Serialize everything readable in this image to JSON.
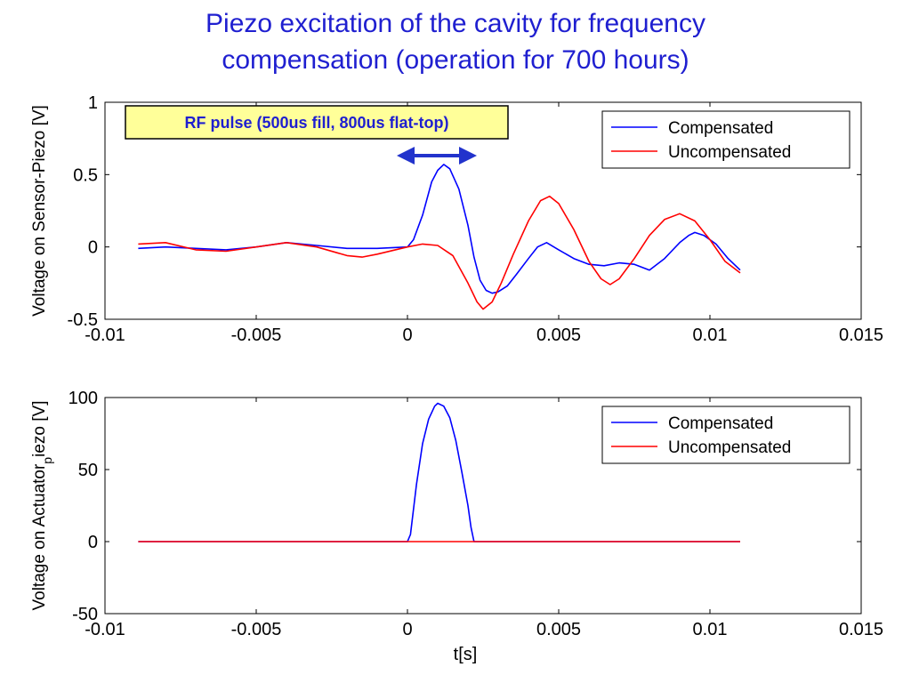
{
  "slide": {
    "title_line1": "Piezo excitation of the cavity for frequency",
    "title_line2": "compensation (operation for 700 hours)"
  },
  "annotation": {
    "text": "RF pulse (500us fill, 800us flat-top)",
    "fill": "#ffff99",
    "arrow_color": "#2233cc"
  },
  "chart_data": [
    {
      "type": "line",
      "title": "",
      "xlabel": "",
      "ylabel": "Voltage on Sensor-Piezo [V]",
      "xlim": [
        -0.01,
        0.015
      ],
      "ylim": [
        -0.5,
        1
      ],
      "xticks": [
        -0.01,
        -0.005,
        0,
        0.005,
        0.01,
        0.015
      ],
      "xtick_labels": [
        "-0.01",
        "-0.005",
        "0",
        "0.005",
        "0.01",
        "0.015"
      ],
      "yticks": [
        -0.5,
        0,
        0.5,
        1
      ],
      "ytick_labels": [
        "-0.5",
        "0",
        "0.5",
        "1"
      ],
      "legend_position": "top-right",
      "series": [
        {
          "name": "Compensated",
          "color": "#0000ff",
          "points": [
            [
              -0.0089,
              -0.01
            ],
            [
              -0.008,
              0.0
            ],
            [
              -0.007,
              -0.01
            ],
            [
              -0.006,
              -0.02
            ],
            [
              -0.005,
              0.0
            ],
            [
              -0.004,
              0.03
            ],
            [
              -0.003,
              0.01
            ],
            [
              -0.002,
              -0.01
            ],
            [
              -0.001,
              -0.01
            ],
            [
              0.0,
              0.0
            ],
            [
              0.0002,
              0.05
            ],
            [
              0.0005,
              0.22
            ],
            [
              0.0008,
              0.45
            ],
            [
              0.001,
              0.53
            ],
            [
              0.0012,
              0.57
            ],
            [
              0.0014,
              0.54
            ],
            [
              0.0017,
              0.4
            ],
            [
              0.002,
              0.15
            ],
            [
              0.0022,
              -0.07
            ],
            [
              0.0024,
              -0.23
            ],
            [
              0.0026,
              -0.3
            ],
            [
              0.0028,
              -0.32
            ],
            [
              0.003,
              -0.31
            ],
            [
              0.0033,
              -0.27
            ],
            [
              0.0036,
              -0.19
            ],
            [
              0.004,
              -0.08
            ],
            [
              0.0043,
              0.0
            ],
            [
              0.0046,
              0.03
            ],
            [
              0.005,
              -0.02
            ],
            [
              0.0055,
              -0.08
            ],
            [
              0.006,
              -0.12
            ],
            [
              0.0065,
              -0.13
            ],
            [
              0.007,
              -0.11
            ],
            [
              0.0075,
              -0.12
            ],
            [
              0.008,
              -0.16
            ],
            [
              0.0085,
              -0.08
            ],
            [
              0.009,
              0.03
            ],
            [
              0.0093,
              0.08
            ],
            [
              0.0095,
              0.1
            ],
            [
              0.0098,
              0.08
            ],
            [
              0.0102,
              0.02
            ],
            [
              0.0106,
              -0.08
            ],
            [
              0.011,
              -0.16
            ]
          ]
        },
        {
          "name": "Uncompensated",
          "color": "#ff0000",
          "points": [
            [
              -0.0089,
              0.02
            ],
            [
              -0.008,
              0.03
            ],
            [
              -0.007,
              -0.02
            ],
            [
              -0.006,
              -0.03
            ],
            [
              -0.005,
              0.0
            ],
            [
              -0.004,
              0.03
            ],
            [
              -0.003,
              0.0
            ],
            [
              -0.002,
              -0.06
            ],
            [
              -0.0015,
              -0.07
            ],
            [
              -0.001,
              -0.05
            ],
            [
              0.0,
              0.0
            ],
            [
              0.0005,
              0.02
            ],
            [
              0.001,
              0.01
            ],
            [
              0.0015,
              -0.06
            ],
            [
              0.002,
              -0.25
            ],
            [
              0.0023,
              -0.38
            ],
            [
              0.0025,
              -0.43
            ],
            [
              0.0028,
              -0.38
            ],
            [
              0.0031,
              -0.25
            ],
            [
              0.0035,
              -0.05
            ],
            [
              0.004,
              0.18
            ],
            [
              0.0044,
              0.32
            ],
            [
              0.0047,
              0.35
            ],
            [
              0.005,
              0.3
            ],
            [
              0.0055,
              0.12
            ],
            [
              0.006,
              -0.1
            ],
            [
              0.0064,
              -0.22
            ],
            [
              0.0067,
              -0.26
            ],
            [
              0.007,
              -0.22
            ],
            [
              0.0075,
              -0.08
            ],
            [
              0.008,
              0.08
            ],
            [
              0.0085,
              0.19
            ],
            [
              0.009,
              0.23
            ],
            [
              0.0095,
              0.18
            ],
            [
              0.01,
              0.05
            ],
            [
              0.0105,
              -0.1
            ],
            [
              0.011,
              -0.18
            ]
          ]
        }
      ]
    },
    {
      "type": "line",
      "title": "",
      "xlabel": "t[s]",
      "ylabel": "Voltage on Actuator_piezo [V]",
      "ylabel_main": "Voltage on Actuator",
      "ylabel_sub": "p",
      "ylabel_tail": "iezo [V]",
      "xlim": [
        -0.01,
        0.015
      ],
      "ylim": [
        -50,
        100
      ],
      "xticks": [
        -0.01,
        -0.005,
        0,
        0.005,
        0.01,
        0.015
      ],
      "xtick_labels": [
        "-0.01",
        "-0.005",
        "0",
        "0.005",
        "0.01",
        "0.015"
      ],
      "yticks": [
        -50,
        0,
        50,
        100
      ],
      "ytick_labels": [
        "-50",
        "0",
        "50",
        "100"
      ],
      "legend_position": "top-right",
      "series": [
        {
          "name": "Compensated",
          "color": "#0000ff",
          "points": [
            [
              -0.0089,
              0
            ],
            [
              0.0,
              0
            ],
            [
              0.0001,
              5
            ],
            [
              0.0003,
              40
            ],
            [
              0.0005,
              68
            ],
            [
              0.0007,
              85
            ],
            [
              0.0009,
              94
            ],
            [
              0.001,
              96
            ],
            [
              0.0012,
              94
            ],
            [
              0.0014,
              86
            ],
            [
              0.0016,
              70
            ],
            [
              0.0018,
              48
            ],
            [
              0.002,
              25
            ],
            [
              0.0021,
              10
            ],
            [
              0.0022,
              0
            ],
            [
              0.011,
              0
            ]
          ]
        },
        {
          "name": "Uncompensated",
          "color": "#ff0000",
          "points": [
            [
              -0.0089,
              0
            ],
            [
              0.011,
              0
            ]
          ]
        }
      ]
    }
  ]
}
